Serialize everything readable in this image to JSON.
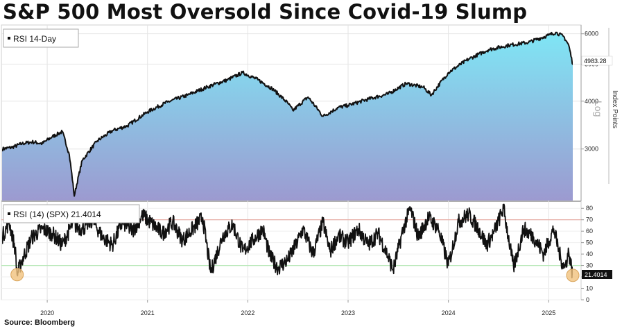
{
  "title": "S&P 500 Most Oversold Since Covid-19 Slump",
  "source": "Source: Bloomberg",
  "chart_data": [
    {
      "type": "area",
      "legend": "RSI 14-Day",
      "ylabel": "Index Points",
      "scale_label": "Log",
      "yscale": "log",
      "ylim": [
        2200,
        6300
      ],
      "yticks": [
        "6000",
        "5000",
        "4000",
        "3000"
      ],
      "last_value": "4983.28",
      "x": [
        2019.55,
        2019.65,
        2019.75,
        2019.85,
        2019.95,
        2020.05,
        2020.15,
        2020.22,
        2020.27,
        2020.35,
        2020.5,
        2020.65,
        2020.8,
        2021.0,
        2021.2,
        2021.4,
        2021.6,
        2021.8,
        2021.95,
        2022.1,
        2022.25,
        2022.4,
        2022.45,
        2022.6,
        2022.75,
        2022.9,
        2023.0,
        2023.2,
        2023.4,
        2023.58,
        2023.75,
        2023.83,
        2024.0,
        2024.2,
        2024.4,
        2024.6,
        2024.8,
        2025.0,
        2025.07,
        2025.15,
        2025.2,
        2025.24
      ],
      "values": [
        3000,
        3030,
        3100,
        3130,
        3100,
        3230,
        3330,
        2900,
        2260,
        2800,
        3150,
        3350,
        3450,
        3750,
        3980,
        4150,
        4360,
        4550,
        4750,
        4550,
        4300,
        3950,
        3780,
        4100,
        3650,
        3850,
        3900,
        4050,
        4180,
        4450,
        4350,
        4150,
        4750,
        5150,
        5450,
        5600,
        5700,
        5950,
        6050,
        5900,
        5600,
        4983.28
      ],
      "line_color": "#111111",
      "fill_top_color": "#7fe6f5",
      "fill_bottom_color": "#9c9ad0"
    },
    {
      "type": "line",
      "legend": "RSI (14) (SPX) 21.4014",
      "ylim": [
        0,
        85
      ],
      "yticks": [
        "80",
        "70",
        "60",
        "50",
        "40",
        "30",
        "20",
        "10",
        "0"
      ],
      "overbought": 70,
      "oversold": 30,
      "last_value": "21.4014",
      "highlight_points": [
        [
          2019.7,
          22
        ],
        [
          2025.24,
          21.4
        ]
      ],
      "x": [
        2019.55,
        2019.62,
        2019.68,
        2019.7,
        2019.75,
        2019.85,
        2019.95,
        2020.05,
        2020.15,
        2020.25,
        2020.35,
        2020.45,
        2020.55,
        2020.65,
        2020.75,
        2020.85,
        2020.95,
        2021.05,
        2021.15,
        2021.25,
        2021.35,
        2021.45,
        2021.55,
        2021.63,
        2021.75,
        2021.85,
        2021.95,
        2022.05,
        2022.15,
        2022.22,
        2022.3,
        2022.4,
        2022.48,
        2022.55,
        2022.65,
        2022.75,
        2022.82,
        2022.9,
        2023.0,
        2023.1,
        2023.2,
        2023.3,
        2023.38,
        2023.45,
        2023.55,
        2023.62,
        2023.7,
        2023.8,
        2023.9,
        2024.0,
        2024.1,
        2024.2,
        2024.3,
        2024.38,
        2024.45,
        2024.55,
        2024.65,
        2024.75,
        2024.85,
        2024.95,
        2025.05,
        2025.12,
        2025.16,
        2025.2,
        2025.24
      ],
      "values": [
        55,
        68,
        45,
        22,
        35,
        55,
        62,
        58,
        48,
        66,
        62,
        70,
        55,
        48,
        68,
        60,
        74,
        66,
        58,
        68,
        52,
        62,
        72,
        24,
        56,
        66,
        42,
        52,
        62,
        38,
        28,
        35,
        48,
        62,
        40,
        68,
        42,
        56,
        50,
        62,
        48,
        58,
        42,
        26,
        62,
        80,
        55,
        72,
        62,
        30,
        68,
        75,
        62,
        48,
        58,
        80,
        28,
        62,
        55,
        40,
        62,
        36,
        28,
        42,
        21.4
      ],
      "line_color": "#111111",
      "overbought_color": "#e6a8a0",
      "oversold_color": "#b9e8b9",
      "highlight_color": "#f1c27d"
    }
  ],
  "x_axis": {
    "labels": [
      "2020",
      "2021",
      "2022",
      "2023",
      "2024",
      "2025"
    ],
    "positions": [
      2020.0,
      2021.0,
      2022.0,
      2023.0,
      2024.0,
      2025.0
    ]
  }
}
